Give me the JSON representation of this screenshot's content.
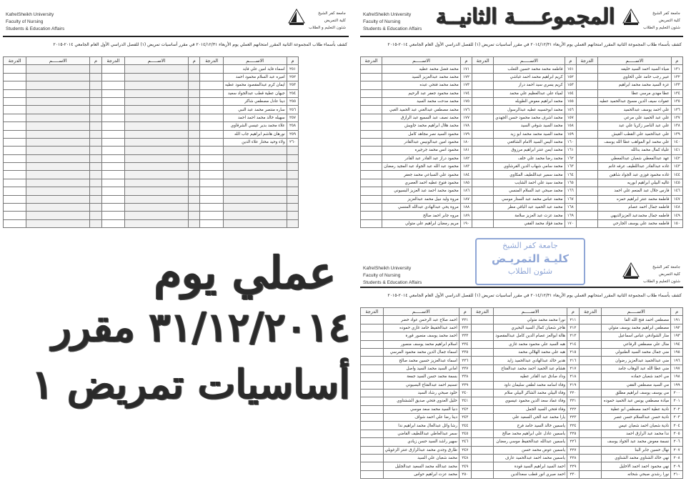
{
  "header": {
    "en_lines": [
      "KafrelSheikh University",
      "Faculty of Nursing",
      "Students & Education Affairs"
    ],
    "ar_lines": [
      "جامعة كفر الشيخ",
      "كلية التمريض",
      "شئون التعليم و الطلاب"
    ]
  },
  "handwritten_title": "المجموعــــة الثانيــة",
  "sheet_title": "كشف بأسماء طلاب المجموعة الثانية المقرر امتحانهم العملي يوم الأربعاء ٢٠١٤/١٢/٣١ في مقرر أساسيات تمريض (١) للفصل الدراسي الأول العام الجامعي ٢٠١٤-٢٠١٥",
  "columns": {
    "num": "م",
    "name": "الاســـــم",
    "grade": "الدرجة"
  },
  "stamp": [
    "جامعة كفر الشيخ",
    "كليـة التمريـض",
    "شئون الطلاب"
  ],
  "handwritten_note": [
    "عملي يوم",
    "٣١/١٢/٢٠١٤ مقرر",
    "أساسيات تمريض ١"
  ],
  "sheets": {
    "top_right": {
      "rows": [
        [
          "١٣١",
          "ضياء السيد احمد السيد خليفه"
        ],
        [
          "١٣٢",
          "عبير رجب حامد علي الحاوي"
        ],
        [
          "١٣٣",
          "عزة السيد محمد محمد ابراهيم"
        ],
        [
          "١٣٤",
          "عطا مهدي مرسي عطا"
        ],
        [
          "١٣٥",
          "عفوات سيف الدين مسيح عبدالحميد عطيه"
        ],
        [
          "١٣٦",
          "علي احمد يوسف عبدالحميد"
        ],
        [
          "١٣٧",
          "علي عبد الحميد علي مرعي"
        ],
        [
          "١٣٨",
          "علي عبد الناصر زكريا علي عبد"
        ],
        [
          "١٣٩",
          "علي عبدالحميد علي القطب القيش"
        ],
        [
          "١٤٠",
          "علي محمد ابو المواهب عطا الله يوسف"
        ],
        [
          "١٤١",
          "علياء كمال محمد بدالله"
        ],
        [
          "١٤٢",
          "عهد عبدالمعطي شعبان عبدالمعطي"
        ],
        [
          "١٤٣",
          "غاده عبدالقادر عبداللطيف عرفه غانم"
        ],
        [
          "١٤٤",
          "غاده محمود فوزي عبد الجواد شاهين"
        ],
        [
          "١٤٥",
          "غاليه البيلي ابراهيم ابوريه"
        ],
        [
          "١٤٦",
          "فارس جلال عبد المنعم علي احمد"
        ],
        [
          "١٤٧",
          "فاطمة محمد عنتر ابراهيم حمزه"
        ],
        [
          "١٤٨",
          "فاطمه جمال احمد عصام"
        ],
        [
          "١٤٩",
          "فاطمه جمال محمدعبد العزيزالديهي"
        ],
        [
          "١٥٠",
          "فاطمه محمد علي يوسف الجارحي"
        ],
        [
          "١٥١",
          "فاطمه محمد محمد حسين الثعلب"
        ],
        [
          "١٥٢",
          "كريم ابراهيم محمد احمد غباشي"
        ],
        [
          "١٥٣",
          "كريم يسري سيد احمد دراز"
        ],
        [
          "١٥٤",
          "لمياء علي عبدالعظيم علي محمد"
        ],
        [
          "١٥٥",
          "محمد ابراهيم معوض الطويله"
        ],
        [
          "١٥٦",
          "محمد ابوحسيبه عطيه عبدالرسول"
        ],
        [
          "١٥٧",
          "محمد اشرف محمد محمود حسن الجهدي"
        ],
        [
          "١٥٨",
          "محمد السيد شوقي السيد"
        ],
        [
          "١٥٩",
          "محمد السيد محمد محمد ابو زيد"
        ],
        [
          "١٦٠",
          "محمد اليس السيد الامام الشافعي"
        ],
        [
          "١٦١",
          "محمد ايمن عنتر ابراهيم مرزوق"
        ],
        [
          "١٦٢",
          "محمد رضا محمد علي خلف"
        ],
        [
          "١٦٣",
          "محمد سامي شهاب الدين القرشاوي"
        ],
        [
          "١٦٤",
          "محمد سمير عبداللطيف المكاوي"
        ],
        [
          "١٦٥",
          "محمد سيد علي احمد الشايب"
        ],
        [
          "١٦٦",
          "محمد صبحي عبد السلام المنسي"
        ],
        [
          "١٦٧",
          "محمد عباس محمد عبد الستار موسي"
        ],
        [
          "١٦٨",
          "محمد عبد الحميد عبد الباقي مطر"
        ],
        [
          "١٦٩",
          "محمد عزت عبد العزيز سلامة"
        ],
        [
          "١٧٠",
          "محمد فؤاد محمد الفقي"
        ],
        [
          "١٧١",
          "محمد فضل محمد عطيه"
        ],
        [
          "١٧٢",
          "محمد محمد عبدالعزيز السيد"
        ],
        [
          "١٧٣",
          "محمد محمد فتحي عبده"
        ],
        [
          "١٧٤",
          "محمد محمود جعفر عبد الرحيم"
        ],
        [
          "١٧٥",
          "محمد مدحت محمد السيد"
        ],
        [
          "١٧٦",
          "محمد مصطفي عبدالغني عبد الحميد الغبي"
        ],
        [
          "١٧٧",
          "محمد نصف عبد السميع عبد الرازق"
        ],
        [
          "١٧٨",
          "محمد هلال ابراهيم محمد جاويش"
        ],
        [
          "١٧٩",
          "محمود السيد نصر مجاهد كامل"
        ],
        [
          "١٨٠",
          "محمود امين عبدالونيس عبدالقادر"
        ],
        [
          "١٨١",
          "محمود انس محمد جرجيره"
        ],
        [
          "١٨٢",
          "محمود دراز عبد القادر عبد القادر"
        ],
        [
          "١٨٣",
          "محمود عبد الله عبد الجواد عبد المجيد رمضان"
        ],
        [
          "١٨٤",
          "محمود علي السباعي محمد جعفر"
        ],
        [
          "١٨٥",
          "محمود فتوح عطيه احمد العصري"
        ],
        [
          "١٨٦",
          "محمود محمد احمد عبد العزيز البسيوني"
        ],
        [
          "١٨٧",
          "مروة وليد نبيل محمد عبدالعزيز"
        ],
        [
          "١٨٨",
          "مروة يحي عبدالهادي عبدالله المنسي"
        ],
        [
          "١٨٩",
          "مروه جابر احمد صالح"
        ],
        [
          "١٩٠",
          "مريم رمضان ابراهيم علي متولي"
        ]
      ]
    },
    "top_left": {
      "rows": [
        [
          "٢٥١",
          "اسماء فايد امين علي فايد"
        ],
        [
          "٢٥٢",
          "اميره عبد السلام محمود احمد"
        ],
        [
          "٢٥٣",
          "ايمان كرم عبدالمقصود محمود عطيه"
        ],
        [
          "٢٥٤",
          "جيهان عطية قطب عبدالجواد سعيد"
        ],
        [
          "٢٥٥",
          "دينا عادل مصطفي شاكر"
        ],
        [
          "٢٥٦",
          "ساره منتصر محمد عبد النبي"
        ],
        [
          "٢٥٧",
          "سهيله خالد محمد احمد احمد"
        ],
        [
          "٢٥٨",
          "علاء محمد بدير عيسي الشرقاوي"
        ],
        [
          "٢٥٩",
          "نورهان هاشم ابراهيم جاب الله"
        ],
        [
          "٢٦٠",
          "ولاء وحيد مختار علاء الدين"
        ]
      ]
    },
    "bottom": {
      "rows": [
        [
          "١٩١",
          "مصطفي احمد فتح الله الفا"
        ],
        [
          "١٩٢",
          "مصطفي ابراهيم محمد يوسف متولي"
        ],
        [
          "١٩٣",
          "منار الشوادفي عباس اسماعيل"
        ],
        [
          "١٩٤",
          "منال علي مصطفي الرفاعي"
        ],
        [
          "١٩٥",
          "مني جمال محمد السيد الطنبولي"
        ],
        [
          "١٩٦",
          "مني عبدالحميد عبدالعزيز رضوان"
        ],
        [
          "١٩٧",
          "مني عطا الله عبد الوهاب جامد"
        ],
        [
          "١٩٨",
          "مي احمد شعبان حماده"
        ],
        [
          "١٩٩",
          "مي السيد مصطفي الفقي"
        ],
        [
          "٢٠٠",
          "مي يوسف يوسف ابراهيم مطلق"
        ],
        [
          "٢٠١",
          "ميادة مصطفي يونس عبد الحميد حموده"
        ],
        [
          "٢٠٢",
          "نادية عطية احمد مصطفي ابو عطية"
        ],
        [
          "٢٠٣",
          "نادية حسن عبدالسلام حسن عصر"
        ],
        [
          "٢٠٤",
          "نادية شعبان احمد شعبان عيس"
        ],
        [
          "٢٠٥",
          "ندا محمد عبد الرازق احمد"
        ],
        [
          "٢٠٦",
          "نسمة معوض محمد عبد الجواد يوسف"
        ],
        [
          "٢٠٧",
          "نهال حسين جابر البنا"
        ],
        [
          "٢٠٨",
          "نهي خالد الشناوي محمد الشناوي"
        ],
        [
          "٢٠٩",
          "نهي محمود احمد احمد الاخليل"
        ],
        [
          "٢١٠",
          "نورا رشدي صبحي شحاته"
        ],
        [
          "٢١١",
          "نورا محمد محمد متولي"
        ],
        [
          "٢١٢",
          "هاجر شعبان كمال السيد البحيري"
        ],
        [
          "٢١٣",
          "هالة ابوالعز عصام الدين كامل عبدالمقصود"
        ],
        [
          "٢١٤",
          "هبه السيد علي محمود محمد غازي"
        ],
        [
          "٢١٥",
          "هبه علي محمد الهلالي محمد"
        ],
        [
          "٢١٦",
          "هدير خالد عبدالهادي عبدالحميد زايد"
        ],
        [
          "٢١٧",
          "هشام عبد الحميد احمد محمد عبدالفتاح"
        ],
        [
          "٢١٨",
          "وداد صادق عبد القادر عطيه"
        ],
        [
          "٢١٩",
          "وفاء اسامه محمد لطفي سليمان داود"
        ],
        [
          "٢٢٠",
          "وفاء البيلي محمد الشاكر البيلي سلام"
        ],
        [
          "٢٢١",
          "وفاء عماد سعد الدين محمود عيسوي"
        ],
        [
          "٢٢٢",
          "وفاء فتحي السيد الجمل"
        ],
        [
          "٢٢٣",
          "يارا محمد عبد الحي السعيد علي"
        ],
        [
          "٢٢٤",
          "ياسمين خالد السيد حامد فرج"
        ],
        [
          "٢٢٥",
          "ياسمين عادل علي ابراهيم محمد صالح"
        ],
        [
          "٢٢٦",
          "ياسمين عبدالله عبدالحفيظ موسي رمضان"
        ],
        [
          "٢٢٧",
          "ياسمين عوض محمد حسن"
        ],
        [
          "٢٢٨",
          "ياسمين محمد احمد عبدالحميد عارف"
        ],
        [
          "٢٢٩",
          "احمد السيد ابراهيم السيد قودة"
        ],
        [
          "٢٣٠",
          "احمد صبري انور قطب سعدالدين"
        ],
        [
          "٢٣١",
          "احمد صلاح عبد الرحمن عواد خضر"
        ],
        [
          "٢٣٢",
          "احمد عبدالحفيظ حامد غازي حموده"
        ],
        [
          "٢٣٣",
          "احمد محمد يوسف منصور قورة"
        ],
        [
          "٢٣٤",
          "اسلام ابراهيم محمد يوسف منصور"
        ],
        [
          "٢٣٥",
          "اسماء جمال الدين محمد محمود المرسي"
        ],
        [
          "٢٣٦",
          "اسماء عبدالعزيز حسين محمد صالح"
        ],
        [
          "٢٣٧",
          "اماني السيد محمد السيد واصل"
        ],
        [
          "٢٣٨",
          "بسمة محمد حسن السيد جمعة"
        ],
        [
          "٢٣٩",
          "تسنيم احمد عبدالفتاح البسيوني"
        ],
        [
          "٢٤٠",
          "خلود صبحي رشاد السيد"
        ],
        [
          "٢٤١",
          "خليل العدوي فتحي صديق الششتاوي"
        ],
        [
          "٢٤٢",
          "دنيا السيد محمد سعد موسي"
        ],
        [
          "٢٤٣",
          "دينا رضا علي احمد شواف"
        ],
        [
          "٢٤٤",
          "رشا وائل عبدالعال محمد ابراهيم ندا"
        ],
        [
          "٢٤٥",
          "سمر عبدالعاطي عبداللطيف القاضي"
        ],
        [
          "٢٤٦",
          "سهير راشد السيد حسن زيادي"
        ],
        [
          "٢٤٧",
          "طارق وجدي محمد عبدالرازق عنتر الزغويلي"
        ],
        [
          "٢٤٨",
          "محمد شعبان علي السيد"
        ],
        [
          "٢٤٩",
          "محمد عبدالله محمد السعيد عبدالجليل"
        ],
        [
          "٢٥٠",
          "محمد عزت ابراهيم حواس"
        ]
      ]
    }
  }
}
